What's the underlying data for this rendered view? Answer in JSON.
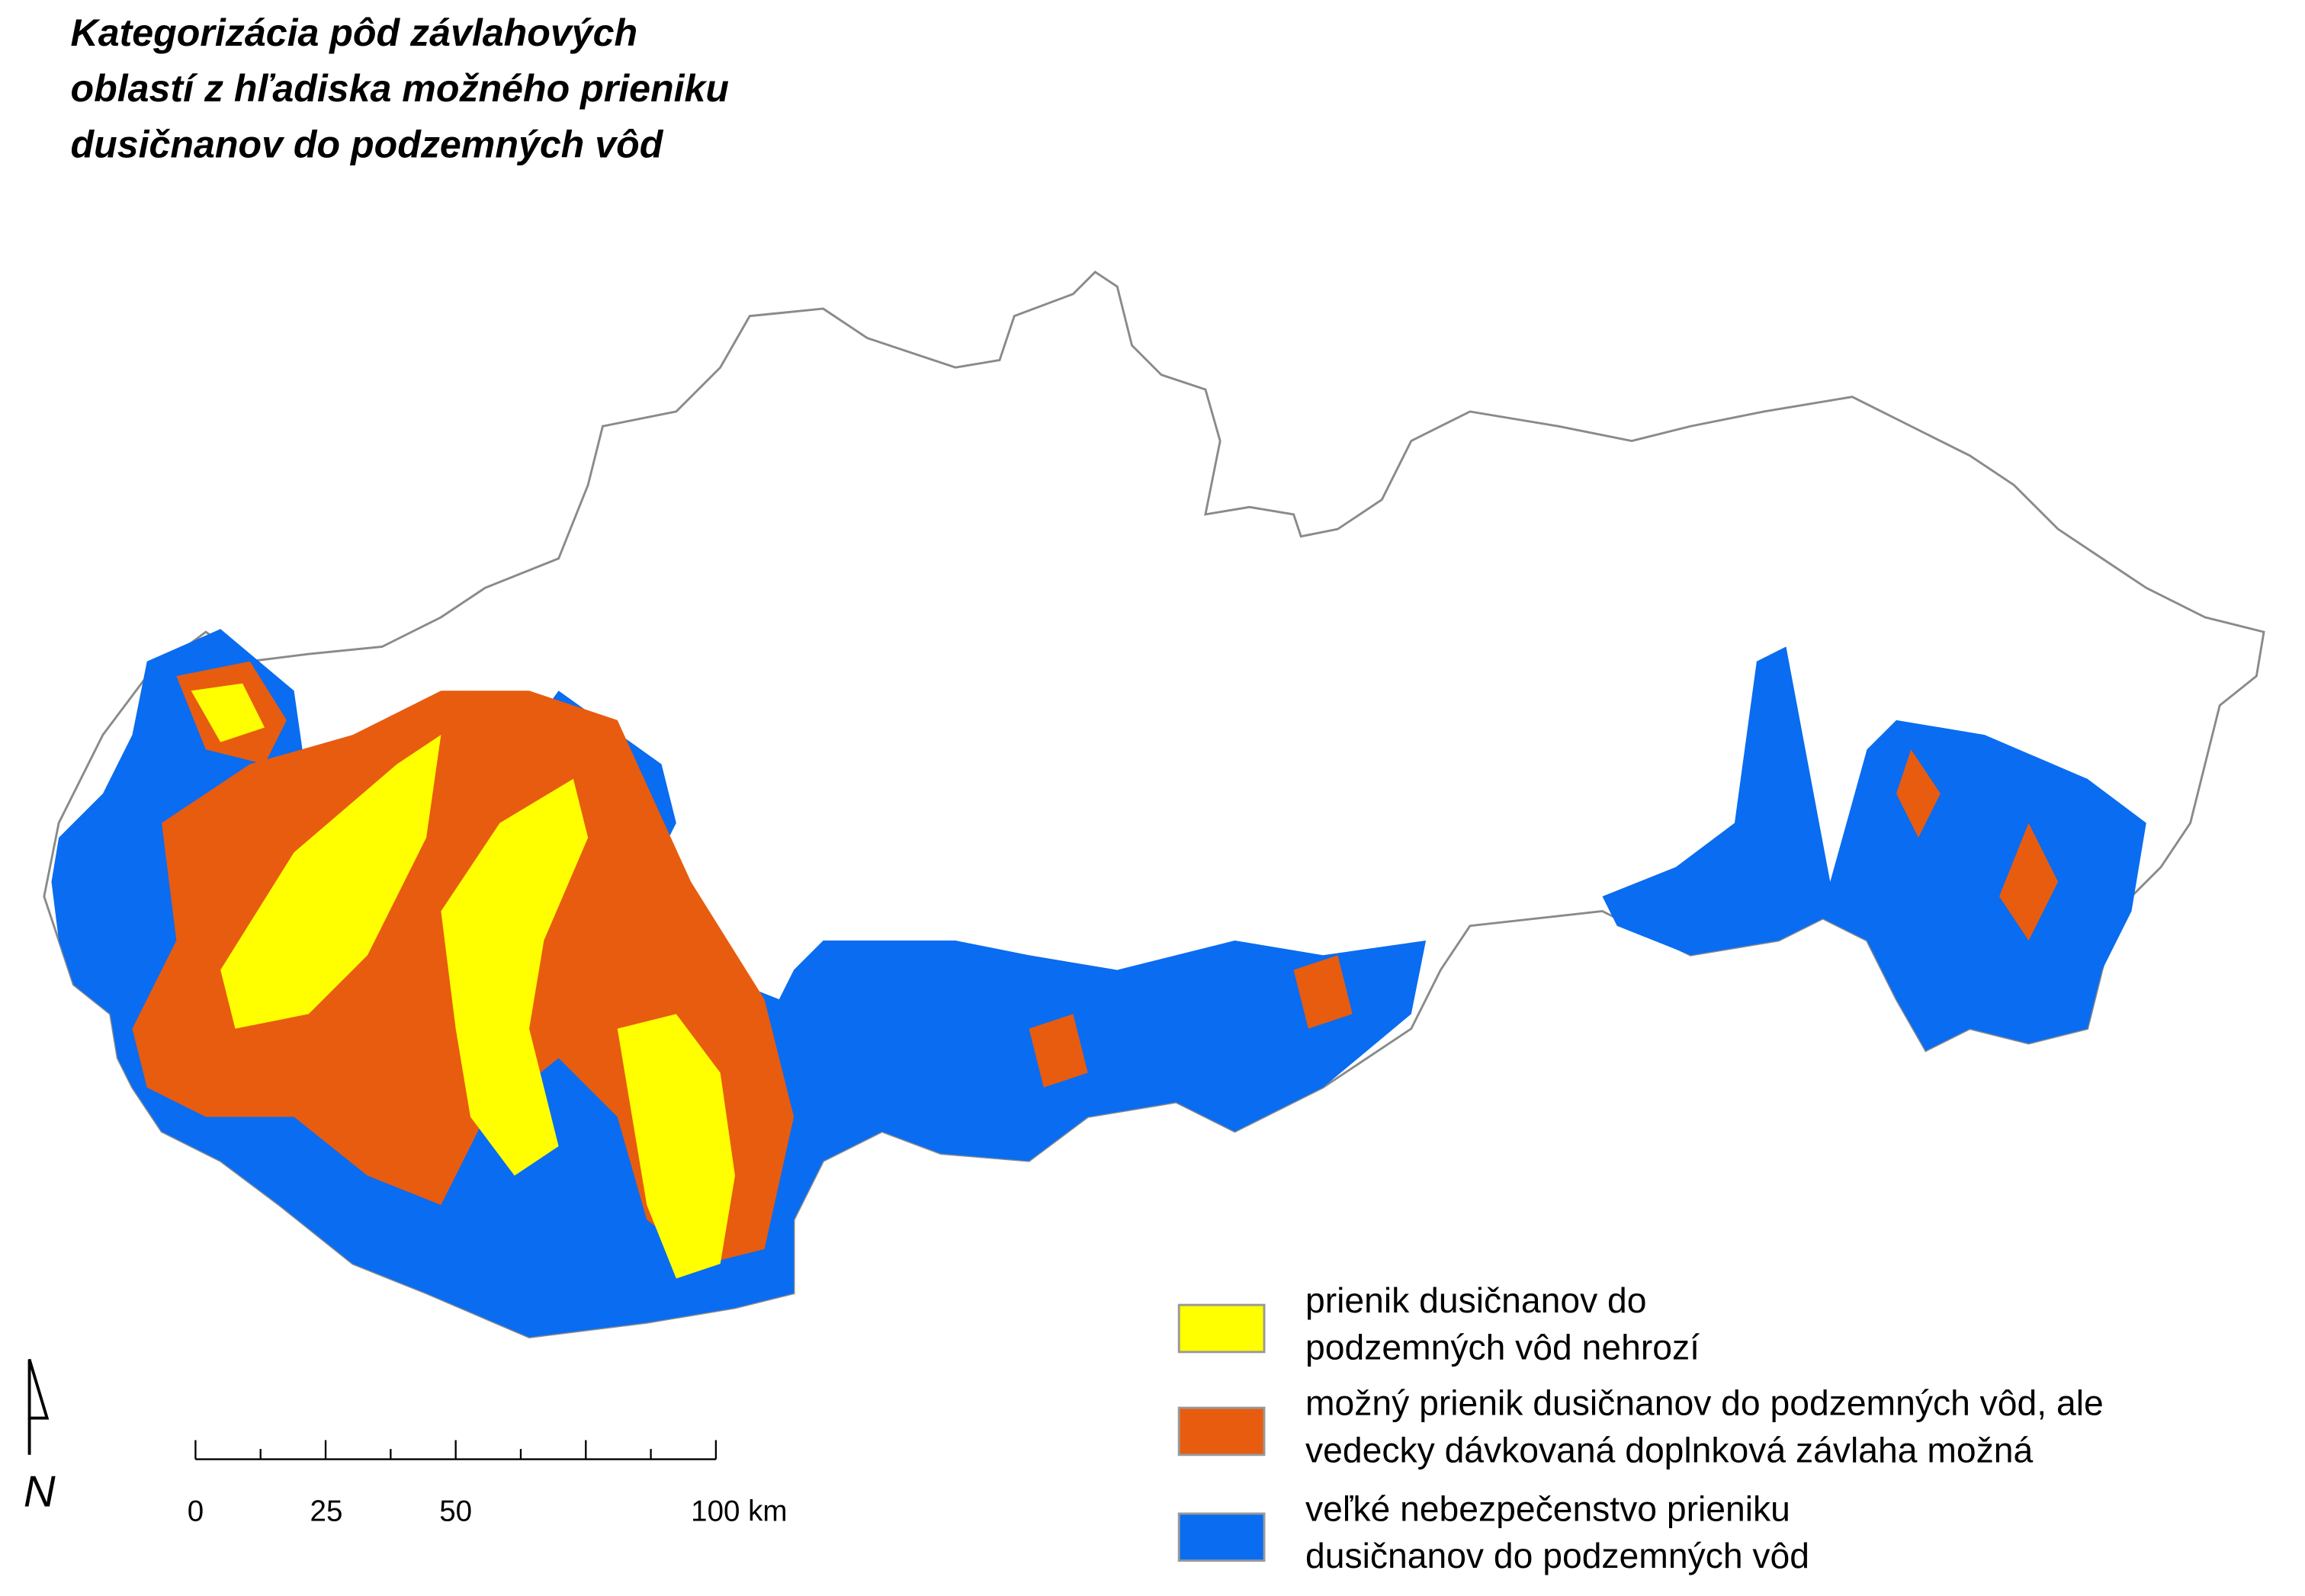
{
  "title_lines": [
    "Kategorizácia pôd závlahových",
    "oblastí z hľadiska možného prieniku",
    "dusičnanov do podzemných vôd"
  ],
  "legend": [
    {
      "label_lines": [
        "prienik dusičnanov do",
        "podzemných vôd nehrozí"
      ],
      "color": "#ffff00"
    },
    {
      "label_lines": [
        "možný prienik dusičnanov do podzemných vôd, ale",
        "vedecky dávkovaná doplnková závlaha možná"
      ],
      "color": "#e85c0f"
    },
    {
      "label_lines": [
        "veľké nebezpečenstvo prieniku",
        "dusičnanov do podzemných vôd"
      ],
      "color": "#0a6cf0"
    }
  ],
  "scale_bar": {
    "labels": [
      "0",
      "25",
      "50",
      "100 km"
    ]
  },
  "north_label": "N"
}
